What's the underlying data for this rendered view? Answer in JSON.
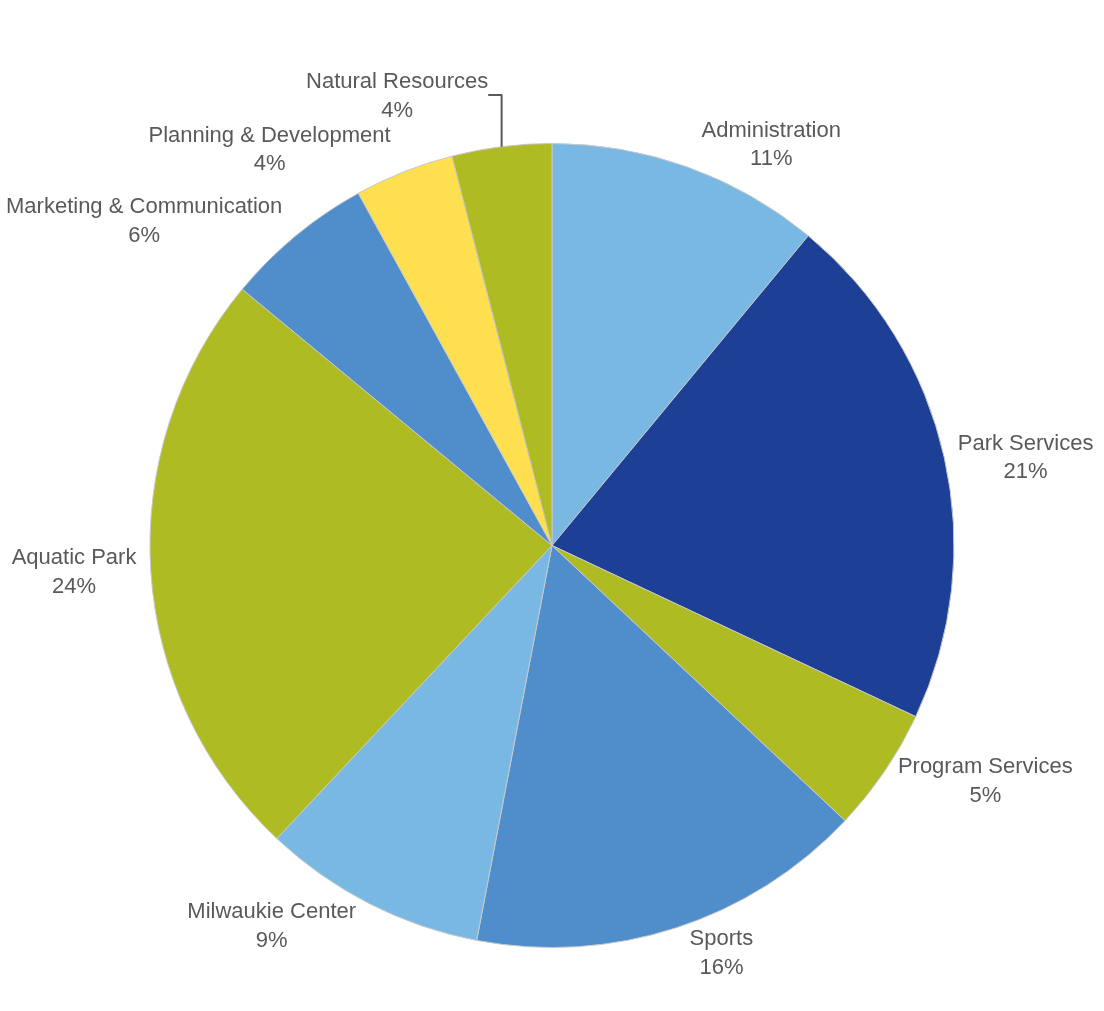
{
  "chart_data": {
    "type": "pie",
    "categories": [
      "Administration",
      "Park Services",
      "Program Services",
      "Sports",
      "Milwaukie Center",
      "Aquatic Park",
      "Marketing & Communication",
      "Planning & Development",
      "Natural Resources"
    ],
    "values": [
      11,
      21,
      5,
      16,
      9,
      24,
      6,
      4,
      4
    ],
    "value_labels": [
      "11%",
      "21%",
      "5%",
      "16%",
      "9%",
      "24%",
      "6%",
      "4%",
      "4%"
    ],
    "colors": [
      "#7ab8e4",
      "#1d4096",
      "#aebb22",
      "#4f8ecb",
      "#7ab8e4",
      "#aebb22",
      "#4f8ecb",
      "#fedf50",
      "#aebb22"
    ],
    "legend": false
  }
}
